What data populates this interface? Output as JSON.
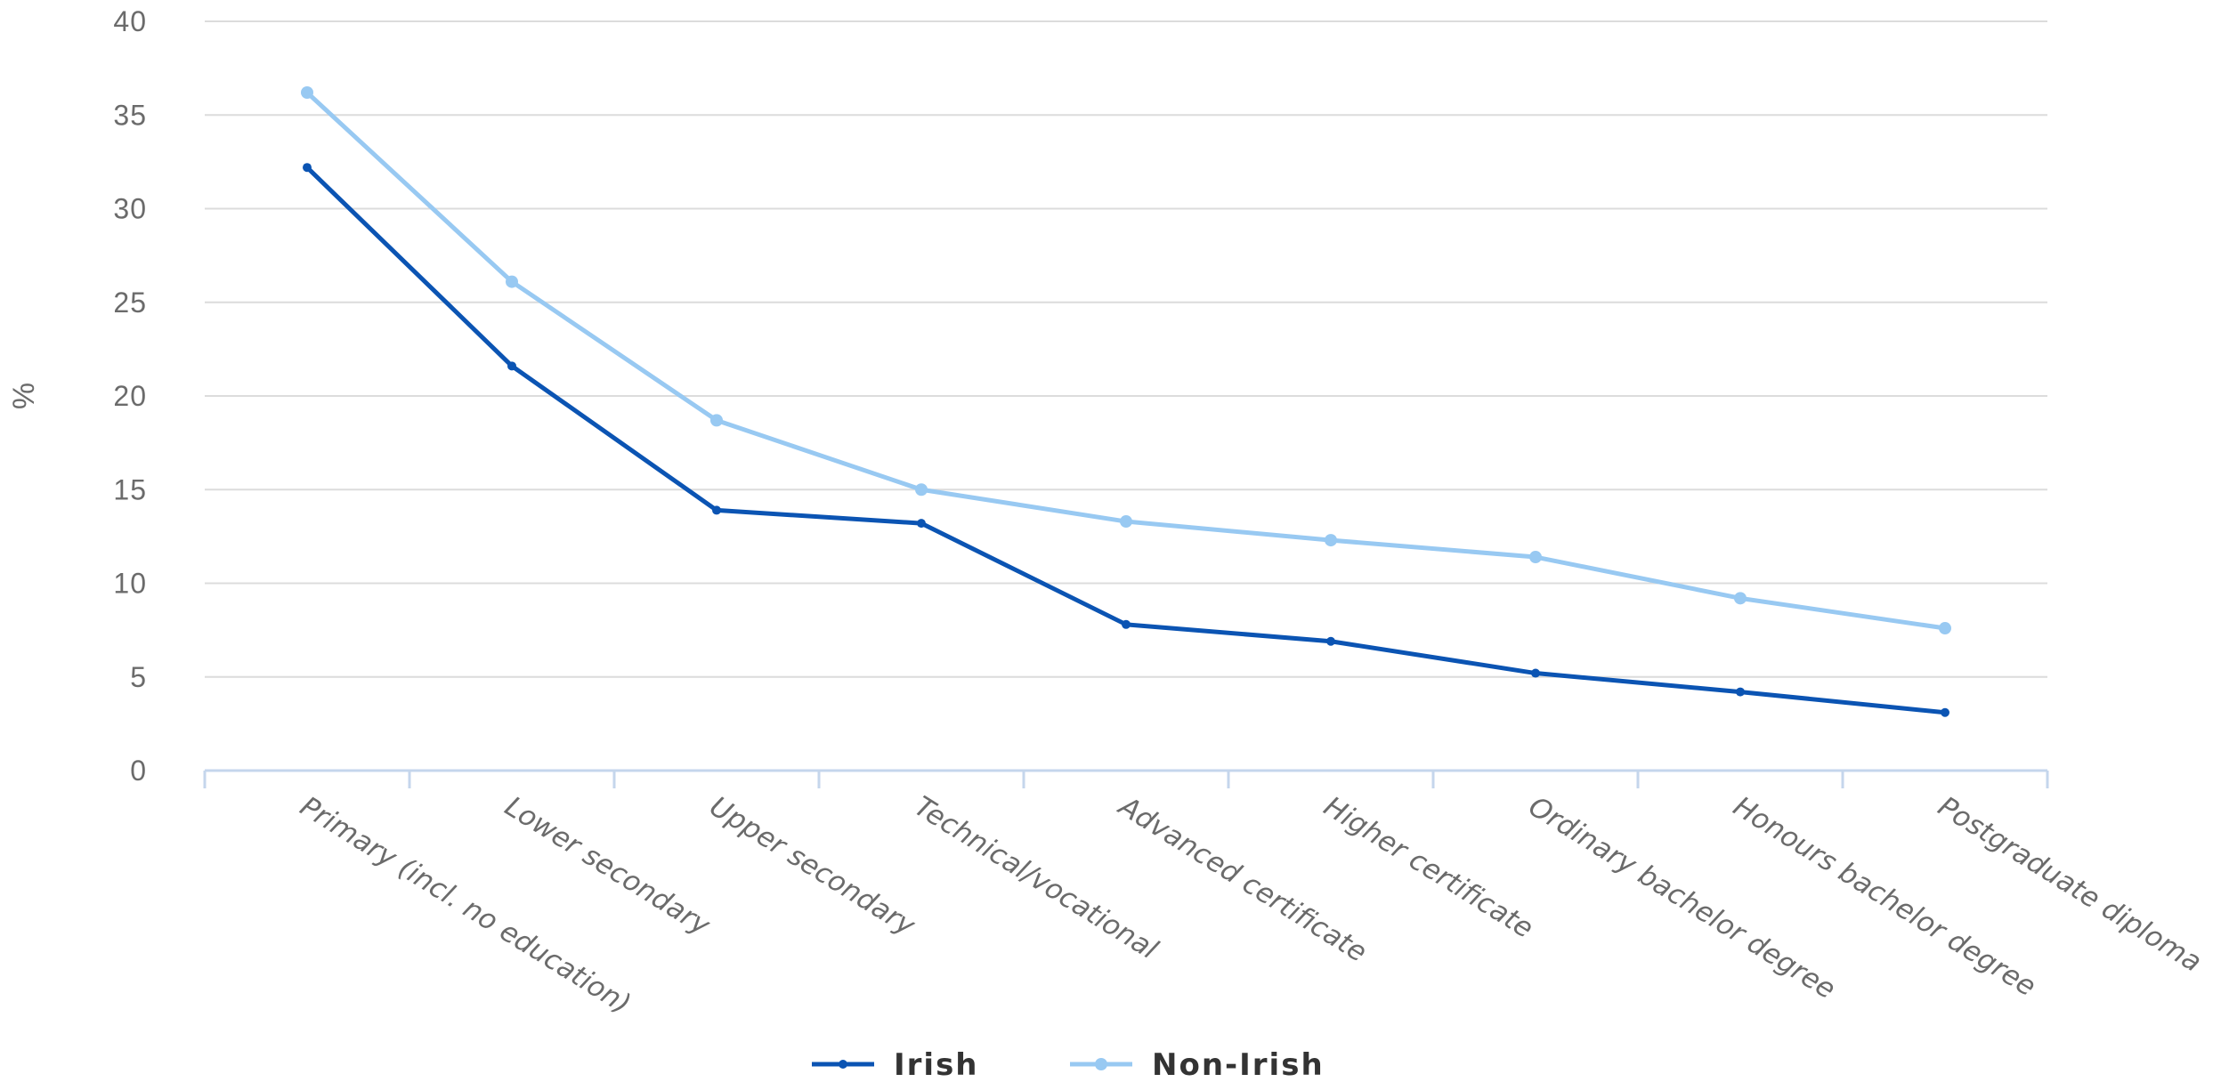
{
  "chart_data": {
    "type": "line",
    "title": "",
    "xlabel": "",
    "ylabel": "%",
    "ylim": [
      0,
      40
    ],
    "yticks": [
      0,
      5,
      10,
      15,
      20,
      25,
      30,
      35,
      40
    ],
    "grid": true,
    "legend_position": "bottom",
    "categories": [
      "Primary (incl. no education)",
      "Lower secondary",
      "Upper secondary",
      "Technical/vocational",
      "Advanced certificate",
      "Higher certificate",
      "Ordinary bachelor degree",
      "Honours bachelor degree",
      "Postgraduate diploma"
    ],
    "series": [
      {
        "name": "Irish",
        "color": "#0b54b3",
        "values": [
          32.2,
          21.6,
          13.9,
          13.2,
          7.8,
          6.9,
          5.2,
          4.2,
          3.1
        ]
      },
      {
        "name": "Non-Irish",
        "color": "#98c9f2",
        "values": [
          36.2,
          26.1,
          18.7,
          15.0,
          13.3,
          12.3,
          11.4,
          9.2,
          7.6
        ]
      }
    ]
  }
}
